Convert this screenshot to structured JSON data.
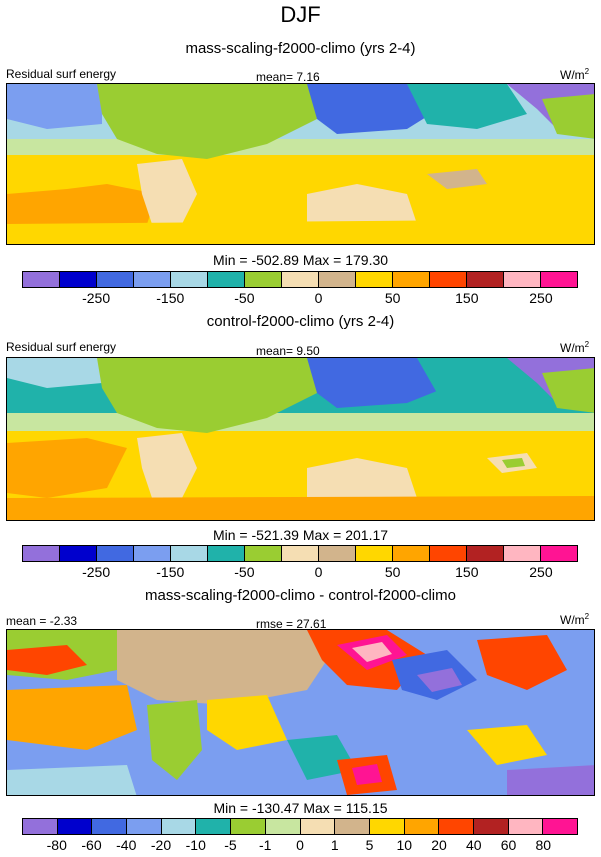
{
  "main_title": "DJF",
  "chart_data": [
    {
      "type": "heatmap",
      "title": "mass-scaling-f2000-climo (yrs 2-4)",
      "left_label": "Residual surf energy",
      "center_label": "mean=  7.16",
      "units": "W/m",
      "units_sup": "2",
      "stats": "Min = -502.89 Max = 179.30",
      "colorbar_levels": [
        -300,
        -250,
        -200,
        -150,
        -100,
        -50,
        -25,
        0,
        25,
        50,
        100,
        150,
        200,
        250,
        300
      ],
      "colorbar_tick_labels": [
        "-250",
        "-150",
        "-50",
        "0",
        "50",
        "150",
        "250"
      ],
      "colorbar_colors": [
        "#9370db",
        "#0000cd",
        "#4169e1",
        "#7b9ef0",
        "#a8d8e6",
        "#20b2aa",
        "#9acd32",
        "#f5deb3",
        "#d2b48c",
        "#ffd700",
        "#ffa500",
        "#ff4500",
        "#b22222",
        "#ffb6c1",
        "#ff1493"
      ]
    },
    {
      "type": "heatmap",
      "title": "control-f2000-climo (yrs 2-4)",
      "left_label": "Residual surf energy",
      "center_label": "mean=  9.50",
      "units": "W/m",
      "units_sup": "2",
      "stats": "Min = -521.39 Max = 201.17",
      "colorbar_levels": [
        -300,
        -250,
        -200,
        -150,
        -100,
        -50,
        -25,
        0,
        25,
        50,
        100,
        150,
        200,
        250,
        300
      ],
      "colorbar_tick_labels": [
        "-250",
        "-150",
        "-50",
        "0",
        "50",
        "150",
        "250"
      ],
      "colorbar_colors": [
        "#9370db",
        "#0000cd",
        "#4169e1",
        "#7b9ef0",
        "#a8d8e6",
        "#20b2aa",
        "#9acd32",
        "#f5deb3",
        "#d2b48c",
        "#ffd700",
        "#ffa500",
        "#ff4500",
        "#b22222",
        "#ffb6c1",
        "#ff1493"
      ]
    },
    {
      "type": "heatmap",
      "title": "mass-scaling-f2000-climo - control-f2000-climo",
      "left_label": "mean = -2.33",
      "center_label": "rmse = 27.61",
      "units": "W/m",
      "units_sup": "2",
      "stats": "Min = -130.47 Max = 115.15",
      "colorbar_levels": [
        -90,
        -80,
        -60,
        -40,
        -20,
        -10,
        -5,
        -1,
        0,
        1,
        5,
        10,
        20,
        40,
        60,
        80,
        90
      ],
      "colorbar_tick_labels": [
        "-80",
        "-60",
        "-40",
        "-20",
        "-10",
        "-5",
        "-1",
        "0",
        "1",
        "5",
        "10",
        "20",
        "40",
        "60",
        "80"
      ],
      "colorbar_colors": [
        "#9370db",
        "#0000cd",
        "#4169e1",
        "#7b9ef0",
        "#a8d8e6",
        "#20b2aa",
        "#9acd32",
        "#c8e6a0",
        "#f5deb3",
        "#d2b48c",
        "#ffd700",
        "#ffa500",
        "#ff4500",
        "#b22222",
        "#ffb6c1",
        "#ff1493"
      ]
    }
  ]
}
